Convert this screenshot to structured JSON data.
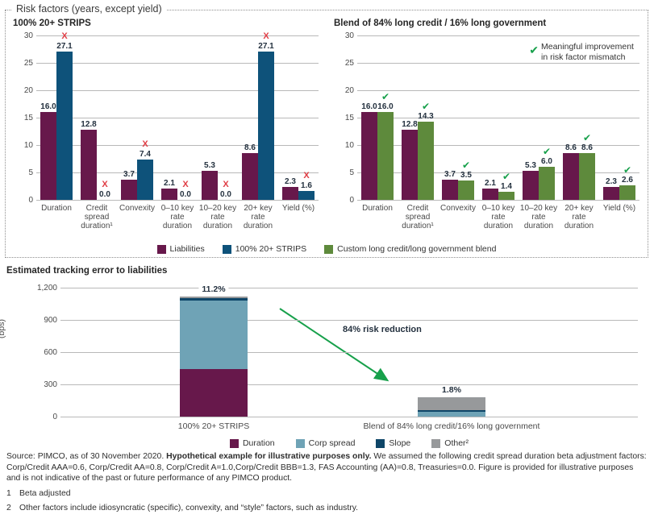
{
  "colors": {
    "liabilities": "#67184B",
    "strips": "#0E527A",
    "blend": "#5E8A3C",
    "corp_spread": "#6FA3B6",
    "slope": "#0E4668",
    "other": "#97999B",
    "x_red": "#E03C44",
    "check_green": "#17A04B",
    "arrow_green": "#17A04B"
  },
  "risk_section": {
    "title": "Risk factors (years, except yield)"
  },
  "chart_data": [
    {
      "type": "bar",
      "title": "100% 20+ STRIPS",
      "ylim": [
        0,
        30
      ],
      "yticks": [
        0,
        5,
        10,
        15,
        20,
        25,
        30
      ],
      "grid": true,
      "legend_position": "bottom-shared",
      "categories": [
        "Duration",
        "Credit spread duration¹",
        "Convexity",
        "0–10 key rate duration",
        "10–20 key rate duration",
        "20+ key rate duration",
        "Yield (%)"
      ],
      "series": [
        {
          "name": "Liabilities",
          "color": "#67184B",
          "values": [
            16.0,
            12.8,
            3.7,
            2.1,
            5.3,
            8.6,
            2.3
          ]
        },
        {
          "name": "100% 20+ STRIPS",
          "color": "#0E527A",
          "values": [
            27.1,
            0.0,
            7.4,
            0.0,
            0.0,
            27.1,
            1.6
          ]
        }
      ],
      "mark": "x"
    },
    {
      "type": "bar",
      "title": "Blend of 84% long credit / 16% long government",
      "ylim": [
        0,
        30
      ],
      "yticks": [
        0,
        5,
        10,
        15,
        20,
        25,
        30
      ],
      "grid": true,
      "legend_position": "bottom-shared",
      "categories": [
        "Duration",
        "Credit spread duration¹",
        "Convexity",
        "0–10 key rate duration",
        "10–20 key rate duration",
        "20+ key rate duration",
        "Yield (%)"
      ],
      "series": [
        {
          "name": "Liabilities",
          "color": "#67184B",
          "values": [
            16.0,
            12.8,
            3.7,
            2.1,
            5.3,
            8.6,
            2.3
          ]
        },
        {
          "name": "Custom long credit/long government blend",
          "color": "#5E8A3C",
          "values": [
            16.0,
            14.3,
            3.5,
            1.4,
            6.0,
            8.6,
            2.6
          ]
        }
      ],
      "mark": "check",
      "annotation": "Meaningful improvement in risk factor mismatch"
    },
    {
      "type": "stacked_bar",
      "title": "Estimated tracking error to liabilities",
      "ylabel": "(bps)",
      "ylim": [
        0,
        1200
      ],
      "yticks": [
        0,
        300,
        600,
        900,
        1200
      ],
      "ytick_labels": [
        "0",
        "300",
        "600",
        "900",
        "1,200"
      ],
      "grid": true,
      "legend_position": "bottom",
      "categories": [
        "100% 20+ STRIPS",
        "Blend of 84% long credit/16% long government"
      ],
      "total_labels": [
        "11.2%",
        "1.8%"
      ],
      "series": [
        {
          "name": "Duration",
          "color": "#67184B",
          "values": [
            445,
            0
          ]
        },
        {
          "name": "Corp spread",
          "color": "#6FA3B6",
          "values": [
            635,
            45
          ]
        },
        {
          "name": "Slope",
          "color": "#0E4668",
          "values": [
            20,
            12
          ]
        },
        {
          "name": "Other²",
          "color": "#97999B",
          "values": [
            20,
            123
          ]
        }
      ],
      "annotation": "84% risk reduction"
    }
  ],
  "top_legend": {
    "items": [
      {
        "label": "Liabilities",
        "color": "#67184B"
      },
      {
        "label": "100% 20+ STRIPS",
        "color": "#0E527A"
      },
      {
        "label": "Custom long credit/long government blend",
        "color": "#5E8A3C"
      }
    ]
  },
  "bottom_legend": {
    "items": [
      {
        "label": "Duration",
        "color": "#67184B"
      },
      {
        "label": "Corp spread",
        "color": "#6FA3B6"
      },
      {
        "label": "Slope",
        "color": "#0E4668"
      },
      {
        "label": "Other²",
        "color": "#97999B"
      }
    ]
  },
  "footer": {
    "source_prefix": "Source: PIMCO, as of 30 November 2020. ",
    "source_bold": "Hypothetical example for illustrative purposes only.",
    "source_rest": " We assumed the following credit spread duration beta adjustment factors: Corp/Credit AAA=0.6, Corp/Credit AA=0.8, Corp/Credit A=1.0,Corp/Credit BBB=1.3, FAS Accounting (AA)=0.8, Treasuries=0.0. Figure is provided for illustrative purposes and is not indicative of the past or future performance of any PIMCO product.",
    "footnotes": [
      {
        "num": "1",
        "text": "Beta adjusted"
      },
      {
        "num": "2",
        "text": "Other factors include idiosyncratic (specific), convexity, and “style” factors, such as industry."
      }
    ]
  }
}
